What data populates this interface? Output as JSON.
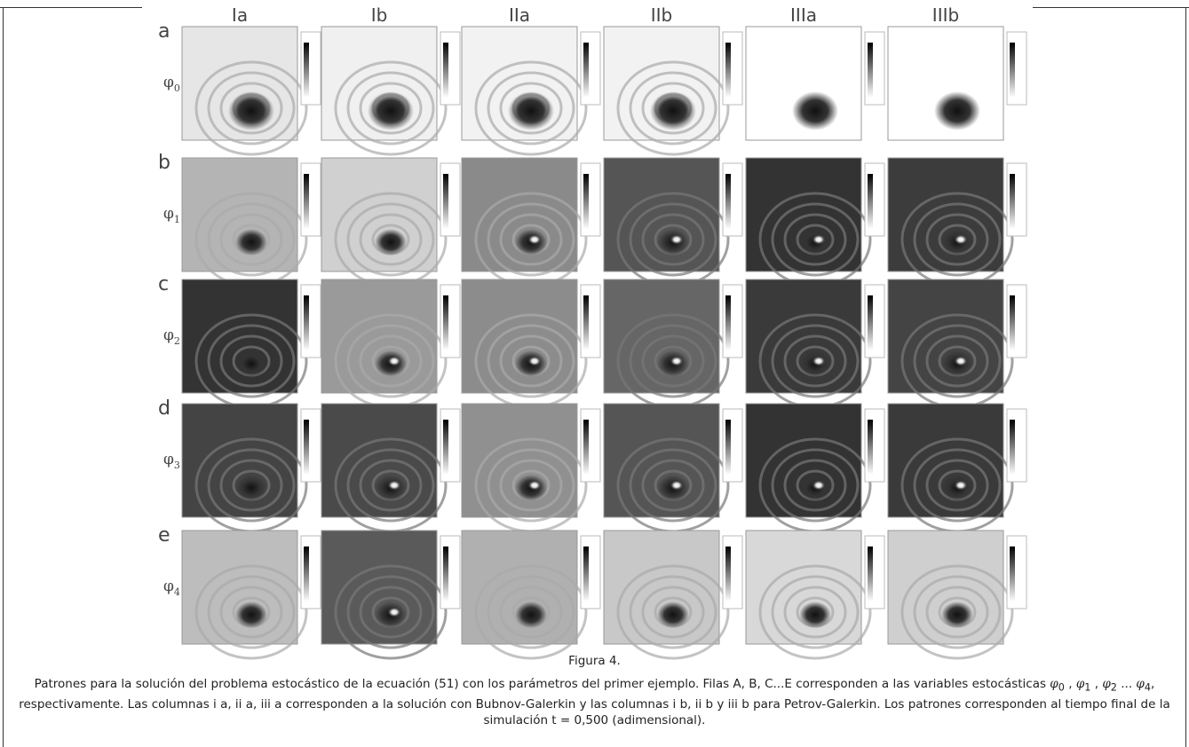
{
  "figure": {
    "columns": [
      "Ia",
      "Ib",
      "IIa",
      "IIb",
      "IIIa",
      "IIIb"
    ],
    "rows": [
      {
        "letter": "a",
        "symbol": "φ",
        "sub": "0"
      },
      {
        "letter": "b",
        "symbol": "φ",
        "sub": "1"
      },
      {
        "letter": "c",
        "symbol": "φ",
        "sub": "2"
      },
      {
        "letter": "d",
        "symbol": "φ",
        "sub": "3"
      },
      {
        "letter": "e",
        "symbol": "φ",
        "sub": "4"
      }
    ]
  },
  "caption": {
    "label": "Figura 4.",
    "text_start": "Patrones para la solución del problema estocástico de la ecuación (51) con los parámetros del primer ejemplo. Filas A, B, C...E corresponden a las variables estocásticas",
    "variables": [
      {
        "base": "φ",
        "sub": "0"
      },
      {
        "base": "φ",
        "sub": "1"
      },
      {
        "base": "φ",
        "sub": "2"
      },
      {
        "base": "φ",
        "sub": "4"
      }
    ],
    "separators": [
      ",",
      ",",
      "..."
    ],
    "text_end": ", respectivamente. Las columnas i a, ii a, iii a corresponden a la solución con Bubnov-Galerkin y las columnas i b, ii b y iii b para Petrov-Galerkin. Los patrones corresponden al tiempo final de la simulación t = 0,500 (adimensional)."
  }
}
